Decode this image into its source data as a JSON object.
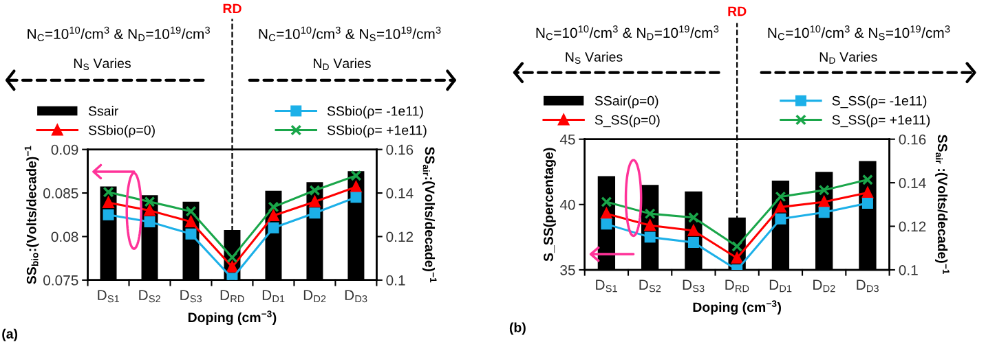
{
  "chart_data": [
    {
      "type": "line",
      "xlabel": "Doping (cm$^{−3}$)",
      "ylabel": "SS$_{bio}$:(Volts/decade)$^{−1}$",
      "y2label": "SS$_{air}$:(Volts/decade)$^{−1}$",
      "annotations": [
        "N$_{C}$=10$^{10}$/cm$^{3}$ & N$_{D}$=10$^{19}$/cm$^{3}$",
        "N$_{C}$=10$^{10}$/cm$^{3}$ & N$_{S}$=10$^{19}$/cm$^{3}$",
        "N$_{S}$ Varies",
        "N$_{D}$ Varies",
        "(a)"
      ],
      "categories": [
        "D$_{S1}$",
        "D$_{S2}$",
        "D$_{S3}$",
        "D$_{RD}$",
        "D$_{D1}$",
        "D$_{D2}$",
        "D$_{D3}$"
      ],
      "series": [
        {
          "name": "Ssair",
          "type": "bar",
          "axis": "y2",
          "color": "#000000",
          "values": [
            0.143,
            0.139,
            0.136,
            0.123,
            0.141,
            0.145,
            0.15
          ]
        },
        {
          "name": "SSbio(ρ=0)",
          "marker": "triangle",
          "color": "#ff0000",
          "values": [
            0.0839,
            0.083,
            0.0817,
            0.0765,
            0.0824,
            0.084,
            0.0857
          ]
        },
        {
          "name": "SSbio(ρ= -1e11)",
          "marker": "square",
          "color": "#1cb0e8",
          "values": [
            0.0825,
            0.0817,
            0.0803,
            0.0752,
            0.081,
            0.0827,
            0.0845
          ]
        },
        {
          "name": "SSbio(ρ= +1e11)",
          "marker": "cross",
          "color": "#1aa64a",
          "values": [
            0.0851,
            0.084,
            0.0829,
            0.0776,
            0.0834,
            0.0853,
            0.087
          ]
        }
      ],
      "ylim": [
        0.075,
        0.09
      ],
      "yticks": [
        0.075,
        0.08,
        0.085,
        0.09
      ],
      "y2lim": [
        0.1,
        0.16
      ],
      "y2ticks": [
        0.1,
        0.12,
        0.14,
        0.16
      ],
      "ref_lines": [
        {
          "axis": "x",
          "value": "D$_{RD}$",
          "label": "RD",
          "color": "#000000",
          "line_style": "dashed"
        }
      ],
      "legend": "top",
      "line_style": "solid"
    },
    {
      "type": "line",
      "xlabel": "Doping (cm$^{−3}$)",
      "ylabel": "S_SS(percentage)",
      "y2label": "SS$_{air}$ :(Volts/decade)$^{−1}$",
      "annotations": [
        "N$_{C}$=10$^{10}$/cm$^{3}$ & N$_{D}$=10$^{19}$/cm$^{3}$",
        "N$_{C}$=10$^{10}$/cm$^{3}$ & N$_{S}$=10$^{19}$/cm$^{3}$",
        "N$_{S}$ Varies",
        "N$_{D}$ Varies",
        "(b)"
      ],
      "categories": [
        "D$_{S1}$",
        "D$_{S2}$",
        "D$_{S3}$",
        "D$_{RD}$",
        "D$_{D1}$",
        "D$_{D2}$",
        "D$_{D3}$"
      ],
      "series": [
        {
          "name": "SSair(ρ=0)",
          "type": "bar",
          "axis": "y2",
          "color": "#000000",
          "values": [
            0.143,
            0.139,
            0.136,
            0.124,
            0.141,
            0.145,
            0.15
          ]
        },
        {
          "name": "S_SS(ρ=0)",
          "marker": "triangle",
          "color": "#ff0000",
          "values": [
            39.3,
            38.4,
            38.0,
            35.9,
            39.8,
            40.2,
            40.9
          ]
        },
        {
          "name": "S_SS(ρ= -1e11)",
          "marker": "square",
          "color": "#1cb0e8",
          "values": [
            38.5,
            37.5,
            37.1,
            35.0,
            38.9,
            39.4,
            40.1
          ]
        },
        {
          "name": "S_SS(ρ= +1e11)",
          "marker": "cross",
          "color": "#1aa64a",
          "values": [
            40.2,
            39.3,
            39.0,
            36.8,
            40.6,
            41.1,
            41.9
          ]
        }
      ],
      "ylim": [
        35,
        45
      ],
      "yticks": [
        35,
        40,
        45
      ],
      "y2lim": [
        0.1,
        0.16
      ],
      "y2ticks": [
        0.1,
        0.12,
        0.14,
        0.16
      ],
      "ref_lines": [
        {
          "axis": "x",
          "value": "D$_{RD}$",
          "label": "RD",
          "color": "#000000",
          "line_style": "dashed"
        }
      ],
      "legend": "top",
      "line_style": "solid"
    }
  ]
}
